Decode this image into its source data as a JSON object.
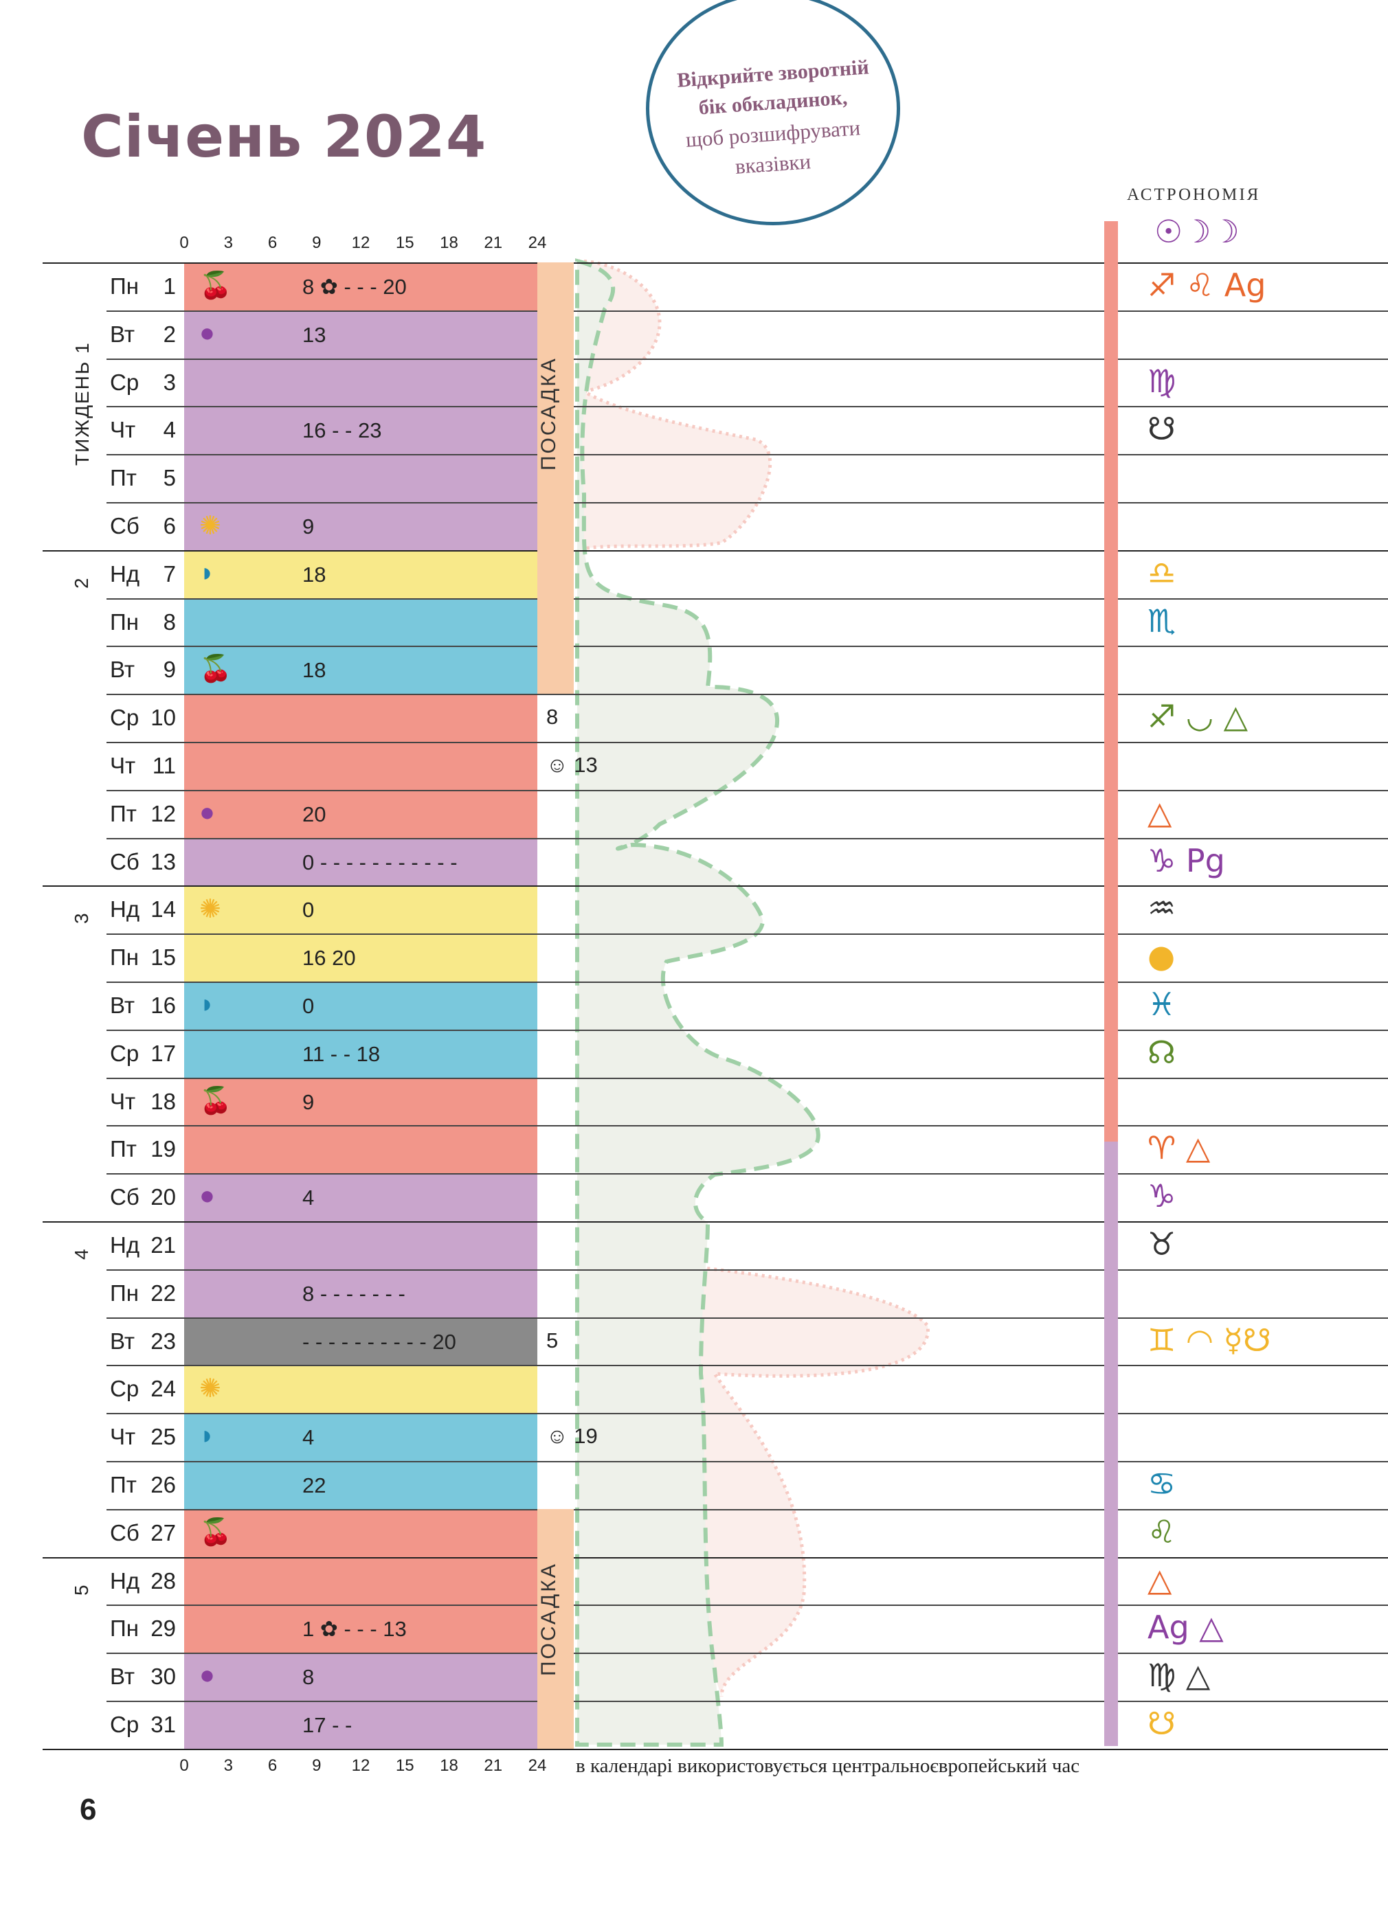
{
  "header": {
    "title": "Січень 2024",
    "circle_lines": [
      "Відкрийте зворотній",
      "бік обкладинок,",
      "щоб розшифрувати",
      "вказівки"
    ],
    "astronomy_title": "АСТРОНОМІЯ",
    "astronomy_header_symbols": "☉☽☽"
  },
  "hour_axis": [
    "0",
    "3",
    "6",
    "9",
    "12",
    "15",
    "18",
    "21",
    "24"
  ],
  "week_labels": [
    "ТИЖДЕНЬ 1",
    "2",
    "3",
    "4",
    "5"
  ],
  "colors": {
    "fruit": "#f2968a",
    "root": "#c9a5cc",
    "flower": "#f8e98a",
    "leaf": "#7ac8dc",
    "unfavorable": "#8a8a8a",
    "planting": "#f8cba8",
    "green_curve": "#9fcfa6",
    "pink_curve": "#f6c9c2"
  },
  "days": [
    {
      "dow": "Пн",
      "num": "1",
      "label": "8 ✿ - - - 20",
      "icon": "cherry-icon"
    },
    {
      "dow": "Вт",
      "num": "2",
      "label": "13",
      "icon": "beet-icon"
    },
    {
      "dow": "Ср",
      "num": "3",
      "label": "",
      "icon": ""
    },
    {
      "dow": "Чт",
      "num": "4",
      "label": "16 - - 23",
      "icon": ""
    },
    {
      "dow": "Пт",
      "num": "5",
      "label": "",
      "icon": ""
    },
    {
      "dow": "Сб",
      "num": "6",
      "label": "9",
      "icon": "flower-icon"
    },
    {
      "dow": "Нд",
      "num": "7",
      "label": "18",
      "icon": "leaf-icon"
    },
    {
      "dow": "Пн",
      "num": "8",
      "label": "",
      "icon": ""
    },
    {
      "dow": "Вт",
      "num": "9",
      "label": "18",
      "icon": "cherry-icon"
    },
    {
      "dow": "Ср",
      "num": "10",
      "label": "",
      "icon": ""
    },
    {
      "dow": "Чт",
      "num": "11",
      "label": "",
      "icon": ""
    },
    {
      "dow": "Пт",
      "num": "12",
      "label": "20",
      "icon": "beet-icon"
    },
    {
      "dow": "Сб",
      "num": "13",
      "label": "0 - - - - - - - - - - -",
      "icon": ""
    },
    {
      "dow": "Нд",
      "num": "14",
      "label": "0",
      "icon": "flower-icon"
    },
    {
      "dow": "Пн",
      "num": "15",
      "label": "16   20",
      "icon": ""
    },
    {
      "dow": "Вт",
      "num": "16",
      "label": "0",
      "icon": "leaf-icon"
    },
    {
      "dow": "Ср",
      "num": "17",
      "label": "11 - - 18",
      "icon": ""
    },
    {
      "dow": "Чт",
      "num": "18",
      "label": "9",
      "icon": "cherry-icon"
    },
    {
      "dow": "Пт",
      "num": "19",
      "label": "",
      "icon": ""
    },
    {
      "dow": "Сб",
      "num": "20",
      "label": "4",
      "icon": "beet-icon"
    },
    {
      "dow": "Нд",
      "num": "21",
      "label": "",
      "icon": ""
    },
    {
      "dow": "Пн",
      "num": "22",
      "label": "8 - - - - - - -",
      "icon": ""
    },
    {
      "dow": "Вт",
      "num": "23",
      "label": "- - - - - - - - - - 20",
      "icon": ""
    },
    {
      "dow": "Ср",
      "num": "24",
      "label": "",
      "icon": "flower-icon"
    },
    {
      "dow": "Чт",
      "num": "25",
      "label": "4",
      "icon": "leaf-icon"
    },
    {
      "dow": "Пт",
      "num": "26",
      "label": "22",
      "icon": ""
    },
    {
      "dow": "Сб",
      "num": "27",
      "label": "",
      "icon": "cherry-icon"
    },
    {
      "dow": "Нд",
      "num": "28",
      "label": "",
      "icon": ""
    },
    {
      "dow": "Пн",
      "num": "29",
      "label": "1 ✿ - - - 13",
      "icon": ""
    },
    {
      "dow": "Вт",
      "num": "30",
      "label": "8",
      "icon": "beet-icon"
    },
    {
      "dow": "Ср",
      "num": "31",
      "label": "17 - -",
      "icon": ""
    }
  ],
  "planting": {
    "label": "ПОСАДКА",
    "notes": [
      {
        "text": "8"
      },
      {
        "text": "☺ 13"
      },
      {
        "text": "5"
      },
      {
        "text": "☺ 19"
      }
    ]
  },
  "astronomy": [
    {
      "day": "1",
      "symbols": "♐ ♌ Ag"
    },
    {
      "day": "3",
      "symbols": "♍"
    },
    {
      "day": "4",
      "symbols": "☋"
    },
    {
      "day": "7",
      "symbols": "♎"
    },
    {
      "day": "8",
      "symbols": "♏"
    },
    {
      "day": "10",
      "symbols": "♐ ◡ △"
    },
    {
      "day": "12",
      "symbols": "△"
    },
    {
      "day": "13",
      "symbols": "♑ Pg"
    },
    {
      "day": "14",
      "symbols": "♒"
    },
    {
      "day": "15",
      "symbols": "●"
    },
    {
      "day": "16",
      "symbols": "♓"
    },
    {
      "day": "17",
      "symbols": "☊"
    },
    {
      "day": "19",
      "symbols": "♈   △"
    },
    {
      "day": "20",
      "symbols": "♑"
    },
    {
      "day": "21",
      "symbols": "♉"
    },
    {
      "day": "23",
      "symbols": "♊ ◠ ☿☋"
    },
    {
      "day": "26",
      "symbols": "♋"
    },
    {
      "day": "27",
      "symbols": "♌"
    },
    {
      "day": "28",
      "symbols": "△"
    },
    {
      "day": "29",
      "symbols": "Ag △"
    },
    {
      "day": "30",
      "symbols": "♍  △"
    },
    {
      "day": "31",
      "symbols": "☋"
    }
  ],
  "footer": {
    "note": "в календарі використовується центральноєвропейський час",
    "page_number": "6"
  }
}
